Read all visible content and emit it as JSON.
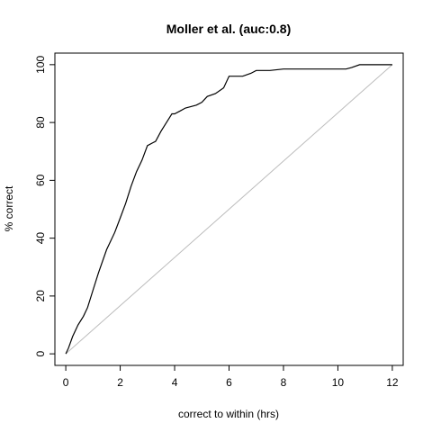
{
  "chart_data": {
    "type": "line",
    "title": "Moller et al. (auc:0.8)",
    "xlabel": "correct to within (hrs)",
    "ylabel": "% correct",
    "xlim": [
      -0.4,
      12.4
    ],
    "ylim": [
      -4,
      104
    ],
    "xticks": [
      0,
      2,
      4,
      6,
      8,
      10,
      12
    ],
    "yticks": [
      0,
      20,
      40,
      60,
      80,
      100
    ],
    "grid": false,
    "legend": "none",
    "line_color": "#000000",
    "reference_line_color": "#bdbdbd",
    "reference_line": {
      "x": [
        0,
        12
      ],
      "y": [
        0,
        100
      ]
    },
    "series": [
      {
        "x": [
          0,
          0.1,
          0.25,
          0.45,
          0.65,
          0.8,
          1.0,
          1.2,
          1.5,
          1.8,
          2.0,
          2.2,
          2.4,
          2.6,
          2.8,
          3.0,
          3.2,
          3.3,
          3.5,
          3.7,
          3.9,
          4.0,
          4.2,
          4.4,
          4.6,
          4.8,
          5.0,
          5.2,
          5.5,
          5.8,
          6.0,
          6.2,
          6.5,
          6.8,
          7.0,
          7.5,
          8.0,
          8.5,
          9.0,
          9.5,
          10.0,
          10.3,
          10.5,
          10.8,
          11.0,
          12.0
        ],
        "y": [
          0,
          2,
          6,
          10,
          13,
          16,
          22,
          28,
          36,
          42,
          47,
          52,
          58,
          63,
          67,
          72,
          73,
          73.5,
          77,
          80,
          83,
          83,
          84,
          85,
          85.5,
          86,
          87,
          89,
          90,
          92,
          96,
          96,
          96,
          97,
          98,
          98,
          98.5,
          98.5,
          98.5,
          98.5,
          98.5,
          98.5,
          99,
          100,
          100,
          100
        ]
      }
    ]
  }
}
